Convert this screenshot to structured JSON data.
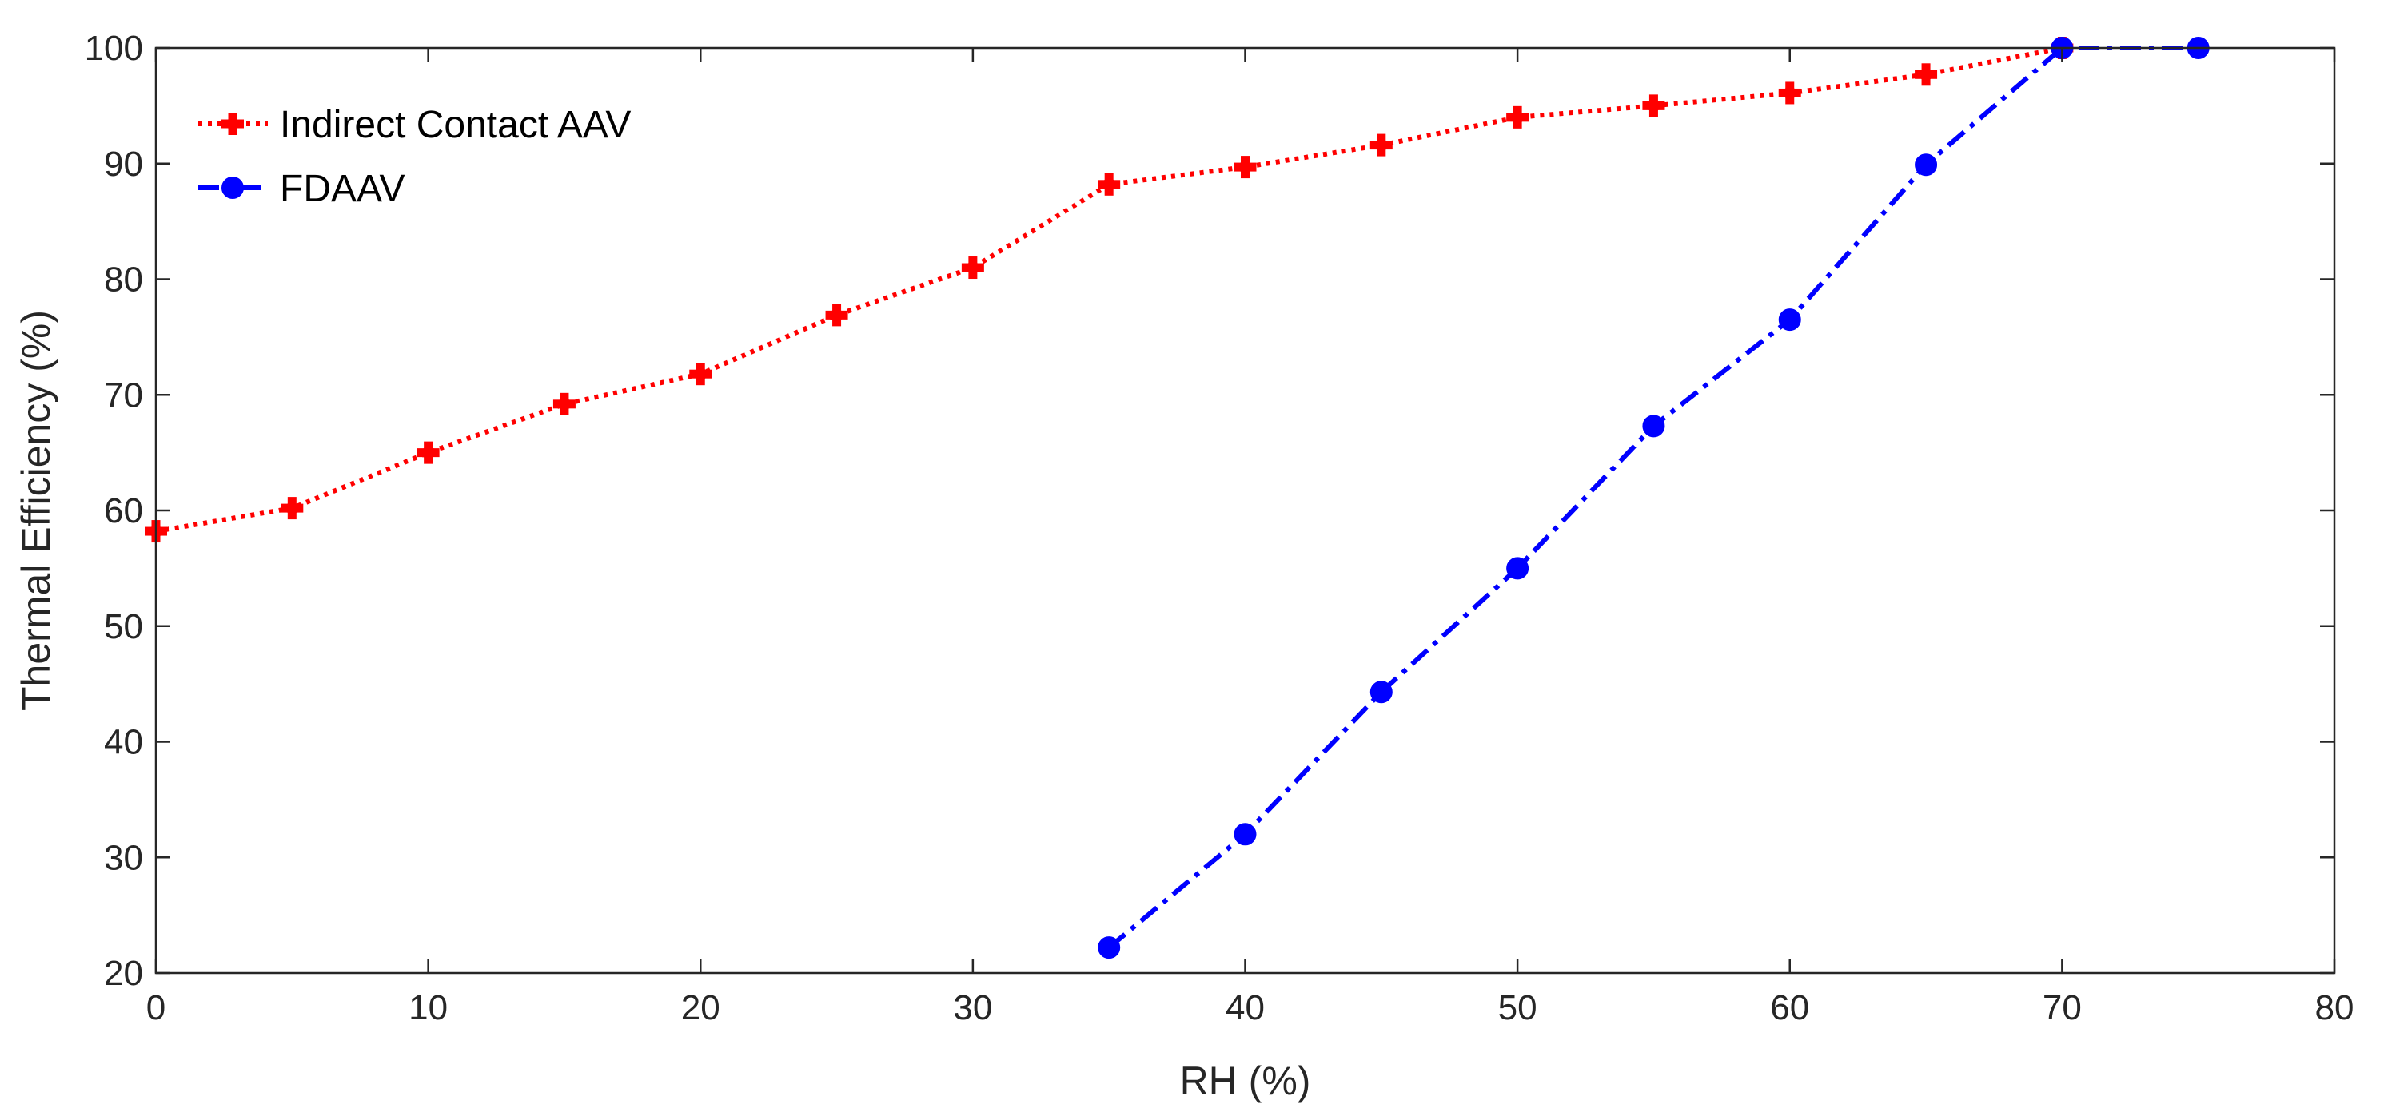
{
  "chart_data": {
    "type": "line",
    "title": "",
    "xlabel": "RH (%)",
    "ylabel": "Thermal Efficiency (%)",
    "xlim": [
      0,
      80
    ],
    "ylim": [
      20,
      100
    ],
    "xticks": [
      0,
      10,
      20,
      30,
      40,
      50,
      60,
      70,
      80
    ],
    "yticks": [
      20,
      30,
      40,
      50,
      60,
      70,
      80,
      90,
      100
    ],
    "grid": false,
    "legend_position": "top-left",
    "series": [
      {
        "name": "Indirect Contact AAV",
        "color": "#ff0000",
        "line_style": "dotted",
        "marker": "plus",
        "x": [
          0,
          5,
          10,
          15,
          20,
          25,
          30,
          35,
          40,
          45,
          50,
          55,
          60,
          65,
          70
        ],
        "y": [
          58.2,
          60.2,
          65.0,
          69.2,
          71.8,
          76.9,
          81.0,
          88.2,
          89.7,
          91.6,
          94.0,
          95.0,
          96.1,
          97.7,
          100.0
        ]
      },
      {
        "name": "FDAAV",
        "color": "#0000ff",
        "line_style": "dashdot",
        "marker": "circle",
        "x": [
          35,
          40,
          45,
          50,
          55,
          60,
          65,
          70,
          75
        ],
        "y": [
          22.2,
          32.0,
          44.3,
          55.0,
          67.3,
          76.5,
          89.9,
          100.0,
          100.0
        ]
      }
    ]
  }
}
